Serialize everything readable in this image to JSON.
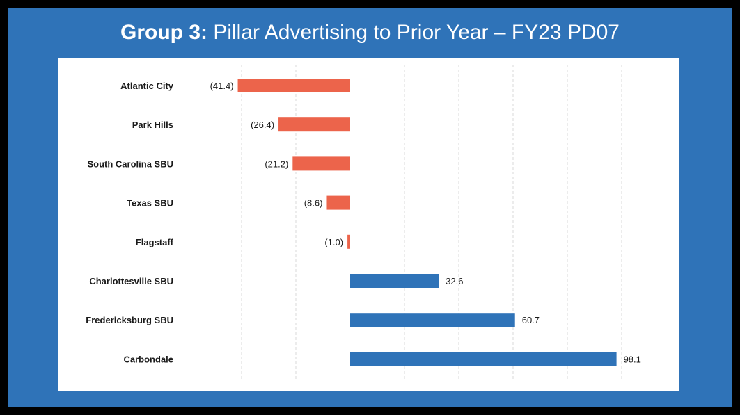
{
  "title": {
    "prefix": "Group 3:",
    "rest": "Pillar Advertising to Prior Year – FY23 PD07"
  },
  "colors": {
    "background": "#2F73B8",
    "negative": "#EC644B",
    "positive": "#2F73B8",
    "grid": "#D9D9D9"
  },
  "chart_data": {
    "type": "bar",
    "orientation": "horizontal",
    "categories": [
      "Atlantic City",
      "Park Hills",
      "South Carolina SBU",
      "Texas SBU",
      "Flagstaff",
      "Charlottesville SBU",
      "Fredericksburg SBU",
      "Carbondale"
    ],
    "values": [
      -41.4,
      -26.4,
      -21.2,
      -8.6,
      -1.0,
      32.6,
      60.7,
      98.1
    ],
    "labels": [
      "(41.4)",
      "(26.4)",
      "(21.2)",
      "(8.6)",
      "(1.0)",
      "32.6",
      "60.7",
      "98.1"
    ],
    "xlim": [
      -40,
      100
    ],
    "grid": "vertical-dashed",
    "legend": "none"
  }
}
